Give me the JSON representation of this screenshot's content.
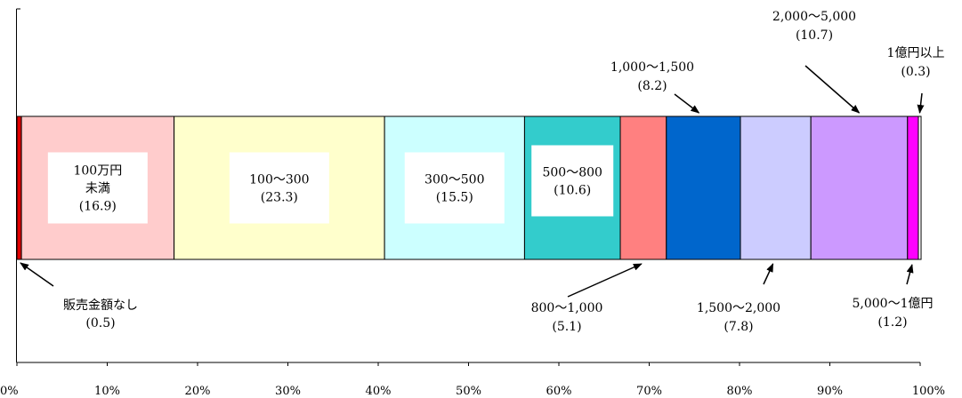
{
  "chart_data": {
    "type": "bar",
    "orientation": "horizontal-stacked-100",
    "xlim": [
      0,
      100
    ],
    "x_ticks": [
      "0%",
      "10%",
      "20%",
      "30%",
      "40%",
      "50%",
      "60%",
      "70%",
      "80%",
      "90%",
      "100%"
    ],
    "grid": false,
    "legend": "none",
    "segments": [
      {
        "id": "none",
        "value": 0.5,
        "color": "#e00000",
        "label_lines": [
          "販売金額なし",
          "(0.5)"
        ],
        "placement": "below-left"
      },
      {
        "id": "lt100",
        "value": 16.9,
        "color": "#ffcccc",
        "label_lines": [
          "100万円",
          "未満",
          "(16.9)"
        ],
        "placement": "inside"
      },
      {
        "id": "100-300",
        "value": 23.3,
        "color": "#ffffcc",
        "label_lines": [
          "100～300",
          "(23.3)"
        ],
        "placement": "inside"
      },
      {
        "id": "300-500",
        "value": 15.5,
        "color": "#ccffff",
        "label_lines": [
          "300～500",
          "(15.5)"
        ],
        "placement": "inside"
      },
      {
        "id": "500-800",
        "value": 10.6,
        "color": "#33cccc",
        "label_lines": [
          "500～800",
          "(10.6)"
        ],
        "placement": "inside"
      },
      {
        "id": "800-1000",
        "value": 5.1,
        "color": "#ff8080",
        "label_lines": [
          "800～1,000",
          "(5.1)"
        ],
        "placement": "below"
      },
      {
        "id": "1000-1500",
        "value": 8.2,
        "color": "#0066cc",
        "label_lines": [
          "1,000～1,500",
          "(8.2)"
        ],
        "placement": "above"
      },
      {
        "id": "1500-2000",
        "value": 7.8,
        "color": "#ccccff",
        "label_lines": [
          "1,500～2,000",
          "(7.8)"
        ],
        "placement": "below"
      },
      {
        "id": "2000-5000",
        "value": 10.7,
        "color": "#cc99ff",
        "label_lines": [
          "2,000～5,000",
          "(10.7)"
        ],
        "placement": "above"
      },
      {
        "id": "5000-1oku",
        "value": 1.2,
        "color": "#ff00ff",
        "label_lines": [
          "5,000～1億円",
          "(1.2)"
        ],
        "placement": "below-right"
      },
      {
        "id": "ge1oku",
        "value": 0.3,
        "color": "#ffffff",
        "label_lines": [
          "1億円以上",
          "(0.3)"
        ],
        "placement": "above-right"
      }
    ]
  }
}
